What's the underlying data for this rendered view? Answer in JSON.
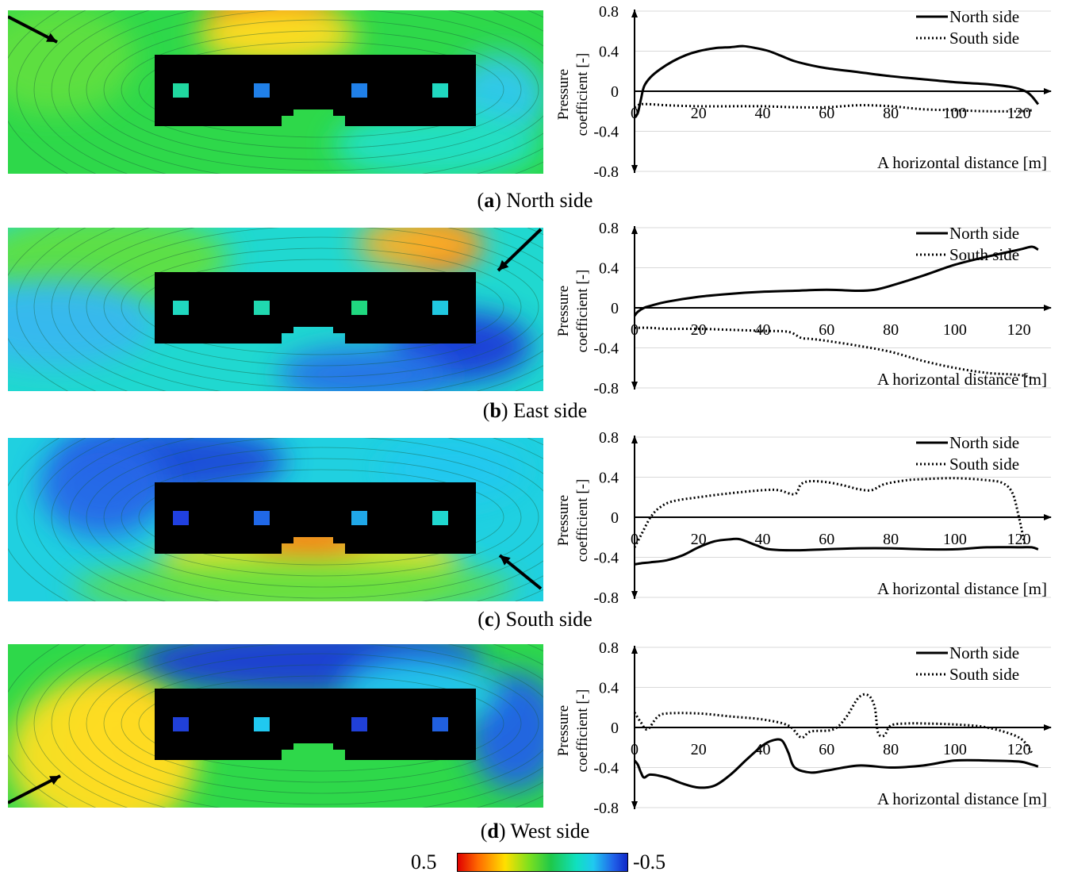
{
  "colorbar": {
    "max_label": "0.5",
    "min_label": "-0.5"
  },
  "chart_data": [
    {
      "type": "line",
      "caption_letter": "a",
      "caption_text": "North side",
      "wind_from": "north-west",
      "xlabel": "A horizontal distance [m]",
      "ylabel_line1": "Pressure",
      "ylabel_line2": "coefficient [-]",
      "ylim": [
        -0.8,
        0.8
      ],
      "xlim": [
        0,
        130
      ],
      "yticks": [
        "0.8",
        "0.4",
        "0",
        "-0.4",
        "-0.8"
      ],
      "xticks": [
        "0",
        "20",
        "40",
        "60",
        "80",
        "100",
        "120"
      ],
      "series": [
        {
          "name": "North side",
          "style": "solid",
          "x": [
            0,
            1,
            2,
            3,
            5,
            8,
            12,
            16,
            20,
            25,
            30,
            34,
            38,
            42,
            46,
            50,
            55,
            60,
            70,
            80,
            90,
            100,
            110,
            118,
            122,
            124,
            126
          ],
          "y": [
            -0.25,
            -0.22,
            -0.08,
            0.05,
            0.14,
            0.22,
            0.3,
            0.36,
            0.4,
            0.43,
            0.44,
            0.45,
            0.43,
            0.4,
            0.35,
            0.3,
            0.26,
            0.23,
            0.19,
            0.15,
            0.12,
            0.09,
            0.07,
            0.04,
            0.0,
            -0.05,
            -0.13
          ]
        },
        {
          "name": "South side",
          "style": "dotted",
          "x": [
            0,
            2,
            5,
            10,
            20,
            30,
            40,
            50,
            60,
            70,
            80,
            90,
            100,
            110,
            120,
            124
          ],
          "y": [
            -0.16,
            -0.13,
            -0.13,
            -0.14,
            -0.15,
            -0.15,
            -0.15,
            -0.16,
            -0.16,
            -0.14,
            -0.15,
            -0.18,
            -0.19,
            -0.2,
            -0.2,
            -0.19
          ]
        }
      ]
    },
    {
      "type": "line",
      "caption_letter": "b",
      "caption_text": "East side",
      "wind_from": "north-east",
      "xlabel": "A horizontal distance [m]",
      "ylabel_line1": "Pressure",
      "ylabel_line2": "coefficient [-]",
      "ylim": [
        -0.8,
        0.8
      ],
      "xlim": [
        0,
        130
      ],
      "yticks": [
        "0.8",
        "0.4",
        "0",
        "-0.4",
        "-0.8"
      ],
      "xticks": [
        "0",
        "20",
        "40",
        "60",
        "80",
        "100",
        "120"
      ],
      "series": [
        {
          "name": "North side",
          "style": "solid",
          "x": [
            0,
            1,
            3,
            5,
            10,
            20,
            30,
            40,
            50,
            60,
            70,
            75,
            80,
            90,
            100,
            110,
            120,
            124,
            126
          ],
          "y": [
            -0.08,
            -0.04,
            0.0,
            0.02,
            0.06,
            0.11,
            0.14,
            0.16,
            0.17,
            0.18,
            0.17,
            0.18,
            0.22,
            0.32,
            0.43,
            0.51,
            0.58,
            0.61,
            0.58
          ]
        },
        {
          "name": "South side",
          "style": "dotted",
          "x": [
            0,
            5,
            10,
            20,
            30,
            40,
            48,
            52,
            55,
            60,
            70,
            80,
            90,
            100,
            110,
            120,
            124
          ],
          "y": [
            -0.2,
            -0.2,
            -0.21,
            -0.21,
            -0.22,
            -0.23,
            -0.24,
            -0.3,
            -0.31,
            -0.33,
            -0.38,
            -0.44,
            -0.53,
            -0.6,
            -0.65,
            -0.67,
            -0.7
          ]
        }
      ]
    },
    {
      "type": "line",
      "caption_letter": "c",
      "caption_text": "South side",
      "wind_from": "south-east",
      "xlabel": "A horizontal distance [m]",
      "ylabel_line1": "Pressure",
      "ylabel_line2": "coefficient [-]",
      "ylim": [
        -0.8,
        0.8
      ],
      "xlim": [
        0,
        130
      ],
      "yticks": [
        "0.8",
        "0.4",
        "0",
        "-0.4",
        "-0.8"
      ],
      "xticks": [
        "0",
        "20",
        "40",
        "60",
        "80",
        "100",
        "120"
      ],
      "series": [
        {
          "name": "North side",
          "style": "solid",
          "x": [
            0,
            2,
            5,
            10,
            15,
            20,
            25,
            30,
            33,
            38,
            42,
            50,
            60,
            70,
            80,
            90,
            100,
            110,
            120,
            124,
            126
          ],
          "y": [
            -0.47,
            -0.46,
            -0.45,
            -0.43,
            -0.38,
            -0.3,
            -0.24,
            -0.22,
            -0.22,
            -0.28,
            -0.32,
            -0.33,
            -0.32,
            -0.31,
            -0.31,
            -0.32,
            -0.32,
            -0.3,
            -0.3,
            -0.3,
            -0.32
          ]
        },
        {
          "name": "South side",
          "style": "dotted",
          "x": [
            0,
            2,
            5,
            8,
            12,
            20,
            30,
            40,
            45,
            50,
            52,
            55,
            60,
            65,
            70,
            74,
            78,
            85,
            90,
            100,
            110,
            115,
            118,
            120,
            122
          ],
          "y": [
            -0.3,
            -0.18,
            0.0,
            0.1,
            0.16,
            0.2,
            0.24,
            0.27,
            0.27,
            0.23,
            0.33,
            0.36,
            0.35,
            0.32,
            0.28,
            0.27,
            0.33,
            0.37,
            0.38,
            0.39,
            0.37,
            0.34,
            0.24,
            0.0,
            -0.3
          ]
        }
      ]
    },
    {
      "type": "line",
      "caption_letter": "d",
      "caption_text": "West side",
      "wind_from": "south-west",
      "xlabel": "A horizontal distance [m]",
      "ylabel_line1": "Pressure",
      "ylabel_line2": "coefficient [-]",
      "ylim": [
        -0.8,
        0.8
      ],
      "xlim": [
        0,
        130
      ],
      "yticks": [
        "0.8",
        "0.4",
        "0",
        "-0.4",
        "-0.8"
      ],
      "xticks": [
        "0",
        "20",
        "40",
        "60",
        "80",
        "100",
        "120"
      ],
      "series": [
        {
          "name": "North side",
          "style": "solid",
          "x": [
            0,
            1,
            2,
            3,
            5,
            10,
            15,
            20,
            25,
            30,
            35,
            40,
            43,
            46,
            48,
            50,
            55,
            60,
            70,
            80,
            90,
            100,
            110,
            120,
            124,
            126
          ],
          "y": [
            -0.33,
            -0.37,
            -0.45,
            -0.5,
            -0.47,
            -0.5,
            -0.56,
            -0.6,
            -0.58,
            -0.47,
            -0.32,
            -0.18,
            -0.13,
            -0.13,
            -0.25,
            -0.4,
            -0.45,
            -0.43,
            -0.38,
            -0.4,
            -0.38,
            -0.33,
            -0.33,
            -0.34,
            -0.37,
            -0.39
          ]
        },
        {
          "name": "South side",
          "style": "dotted",
          "x": [
            0,
            2,
            4,
            7,
            10,
            20,
            30,
            40,
            48,
            52,
            55,
            62,
            66,
            70,
            73,
            75,
            76,
            78,
            80,
            85,
            90,
            100,
            110,
            120,
            124
          ],
          "y": [
            0.15,
            0.05,
            -0.02,
            0.1,
            0.14,
            0.14,
            0.11,
            0.08,
            0.02,
            -0.1,
            -0.04,
            -0.02,
            0.1,
            0.3,
            0.32,
            0.2,
            -0.05,
            -0.08,
            0.02,
            0.04,
            0.04,
            0.03,
            0.0,
            -0.1,
            -0.25
          ]
        }
      ]
    }
  ]
}
